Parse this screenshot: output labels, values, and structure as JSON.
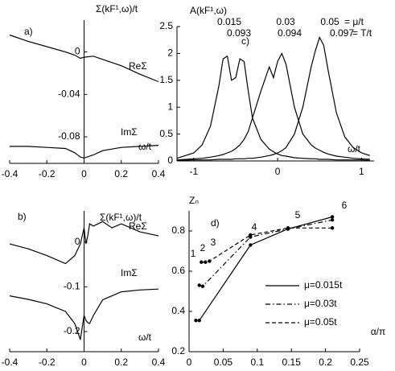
{
  "chart_data": [
    {
      "type": "line",
      "title": "Σ(kF¹,ω)/t",
      "xlabel": "ω/t",
      "annotations": [
        "a)"
      ],
      "x": [
        -0.4,
        -0.3,
        -0.2,
        -0.1,
        -0.05,
        -0.02,
        0,
        0.05,
        0.1,
        0.2,
        0.3,
        0.4
      ],
      "series": [
        {
          "name": "ReΣ",
          "color": "#000000",
          "values": [
            0.016,
            0.01,
            0.005,
            0,
            -0.003,
            -0.006,
            -0.005,
            -0.004,
            -0.007,
            -0.013,
            -0.021,
            -0.028
          ]
        },
        {
          "name": "ImΣ",
          "color": "#000000",
          "values": [
            -0.089,
            -0.089,
            -0.09,
            -0.091,
            -0.095,
            -0.099,
            -0.1,
            -0.097,
            -0.093,
            -0.09,
            -0.089,
            -0.088
          ]
        }
      ],
      "xlim": [
        -0.4,
        0.4
      ],
      "ylim": [
        -0.105,
        0.03
      ],
      "xticks": [
        -0.4,
        -0.2,
        0,
        0.2,
        0.4
      ],
      "yticks": [
        0,
        -0.04,
        -0.08
      ],
      "grid": false
    },
    {
      "type": "line",
      "title": "Σ(kF¹,ω)/t",
      "xlabel": "ω/t",
      "annotations": [
        "b)"
      ],
      "x": [
        -0.4,
        -0.3,
        -0.2,
        -0.1,
        -0.05,
        -0.02,
        0,
        0.01,
        0.02,
        0.03,
        0.05,
        0.1,
        0.15,
        0.2,
        0.3,
        0.4
      ],
      "series": [
        {
          "name": "ReΣ",
          "color": "#000000",
          "values": [
            -0.004,
            -0.015,
            -0.03,
            -0.048,
            -0.03,
            -0.004,
            0.032,
            -0.004,
            0.014,
            0.041,
            0.036,
            0.046,
            0.032,
            0.041,
            0.023,
            0.014
          ]
        },
        {
          "name": "ImΣ",
          "color": "#000000",
          "values": [
            -0.12,
            -0.128,
            -0.138,
            -0.155,
            -0.182,
            -0.218,
            -0.164,
            -0.175,
            -0.18,
            -0.182,
            -0.164,
            -0.129,
            -0.12,
            -0.111,
            -0.107,
            -0.105
          ]
        }
      ],
      "xlim": [
        -0.4,
        0.4
      ],
      "ylim": [
        -0.245,
        0.07
      ],
      "xticks": [
        -0.4,
        -0.2,
        0,
        0.2,
        0.4
      ],
      "yticks": [
        0,
        -0.1,
        -0.2
      ],
      "grid": false
    },
    {
      "type": "line",
      "title": "A(kF¹,ω)",
      "xlabel": "ω/t",
      "annotations": [
        "c)",
        "0.015",
        "0.03",
        "0.05",
        "= μ/t",
        "0.093",
        "0.094",
        "0.097",
        "= T/t"
      ],
      "x": [
        -1.2,
        -1.0,
        -0.9,
        -0.8,
        -0.7,
        -0.65,
        -0.6,
        -0.55,
        -0.5,
        -0.45,
        -0.4,
        -0.35,
        -0.3,
        -0.2,
        -0.1,
        -0.05,
        0,
        0.05,
        0.1,
        0.2,
        0.3,
        0.4,
        0.45,
        0.5,
        0.55,
        0.6,
        0.7,
        0.8,
        0.9,
        1.0,
        1.1
      ],
      "series": [
        {
          "color": "#000000",
          "values": [
            0.05,
            0.15,
            0.3,
            0.65,
            1.4,
            1.9,
            1.95,
            1.5,
            1.55,
            1.9,
            1.85,
            1.3,
            0.8,
            0.4,
            0.22,
            0.17,
            0.13,
            0.1,
            0.09,
            0.06,
            0.05,
            0.04,
            0.04,
            0.03,
            0.03,
            0.03,
            0.02,
            0.02,
            0.02,
            0.02,
            0.01
          ]
        },
        {
          "color": "#000000",
          "values": [
            0.02,
            0.04,
            0.05,
            0.07,
            0.1,
            0.12,
            0.15,
            0.18,
            0.23,
            0.3,
            0.4,
            0.55,
            0.8,
            1.3,
            1.75,
            1.55,
            1.85,
            2.0,
            1.8,
            1.0,
            0.5,
            0.3,
            0.24,
            0.2,
            0.16,
            0.13,
            0.09,
            0.07,
            0.05,
            0.04,
            0.03
          ]
        },
        {
          "color": "#000000",
          "values": [
            0.01,
            0.02,
            0.02,
            0.02,
            0.03,
            0.03,
            0.03,
            0.03,
            0.04,
            0.04,
            0.04,
            0.05,
            0.05,
            0.07,
            0.1,
            0.12,
            0.15,
            0.19,
            0.25,
            0.5,
            1.0,
            1.75,
            2.05,
            2.3,
            2.15,
            1.7,
            0.9,
            0.45,
            0.25,
            0.15,
            0.1
          ]
        }
      ],
      "xlim": [
        -1.2,
        1.15
      ],
      "ylim": [
        0,
        2.5
      ],
      "xticks": [
        -1,
        0,
        1
      ],
      "yticks": [
        0,
        0.5,
        1,
        1.5,
        2,
        2.5
      ],
      "grid": false
    },
    {
      "type": "line",
      "ylabel": "Zₙ",
      "xlabel": "α/π",
      "annotations": [
        "d)"
      ],
      "point_labels": [
        "1",
        "2",
        "3",
        "4",
        "5",
        "6"
      ],
      "series": [
        {
          "name": "μ=0.015t",
          "color": "#000000",
          "dash": "solid",
          "x": [
            0.01,
            0.015,
            0.09,
            0.145,
            0.21
          ],
          "values": [
            0.355,
            0.355,
            0.73,
            0.81,
            0.87
          ]
        },
        {
          "name": "μ=0.03t",
          "color": "#000000",
          "dash": "dashdot",
          "x": [
            0.015,
            0.02,
            0.09,
            0.145,
            0.21
          ],
          "values": [
            0.53,
            0.525,
            0.77,
            0.81,
            0.855
          ]
        },
        {
          "name": "μ=0.05t",
          "color": "#000000",
          "dash": "dashed",
          "x": [
            0.018,
            0.024,
            0.03,
            0.09,
            0.145,
            0.21
          ],
          "values": [
            0.645,
            0.645,
            0.65,
            0.78,
            0.815,
            0.815
          ]
        }
      ],
      "markers": true,
      "xlim": [
        0,
        0.25
      ],
      "ylim": [
        0.2,
        0.9
      ],
      "xticks": [
        0,
        0.05,
        0.1,
        0.15,
        0.2,
        0.25
      ],
      "yticks": [
        0.2,
        0.4,
        0.6,
        0.8
      ],
      "grid": false
    }
  ]
}
